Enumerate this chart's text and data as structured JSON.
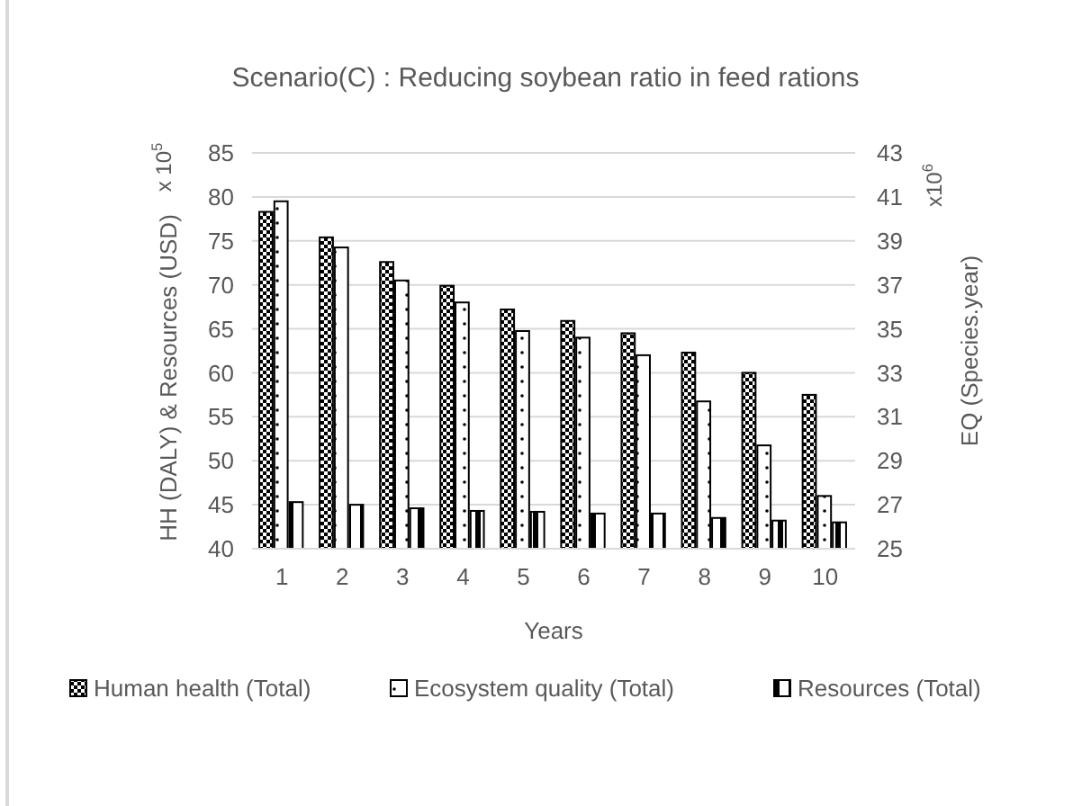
{
  "chart_data": {
    "type": "bar",
    "title": "Scenario(C) : Reducing soybean ratio in feed rations",
    "xlabel": "Years",
    "ylabel": "HH (DALY) & Resources (USD)",
    "y2label": "EQ (Species.year)",
    "annotations": [
      "x 10$^{5}$",
      "x10$^{6}$"
    ],
    "categories": [
      "1",
      "2",
      "3",
      "4",
      "5",
      "6",
      "7",
      "8",
      "9",
      "10"
    ],
    "series": [
      {
        "name": "Human health (Total)",
        "color": "#000000",
        "values": [
          78.3,
          75.4,
          72.6,
          69.9,
          67.2,
          65.9,
          64.5,
          62.3,
          60.0,
          57.5
        ]
      },
      {
        "name": "Ecosystem quality (Total)",
        "color": "#000000",
        "axis": "y2",
        "values": [
          40.8,
          38.7,
          37.2,
          36.2,
          34.9,
          34.6,
          33.8,
          31.7,
          29.7,
          27.4
        ]
      },
      {
        "name": "Resources (Total)",
        "color": "#000000",
        "values": [
          45.3,
          45.0,
          44.6,
          44.3,
          44.2,
          44.0,
          44.0,
          43.5,
          43.2,
          43.0
        ]
      }
    ],
    "ylim": [
      40,
      85
    ],
    "yticks": [
      40,
      45,
      50,
      55,
      60,
      65,
      70,
      75,
      80,
      85
    ],
    "y2lim": [
      25,
      43
    ],
    "y2ticks": [
      25,
      27,
      29,
      31,
      33,
      35,
      37,
      39,
      41,
      43
    ],
    "grid": "y",
    "legend": "bottom"
  }
}
